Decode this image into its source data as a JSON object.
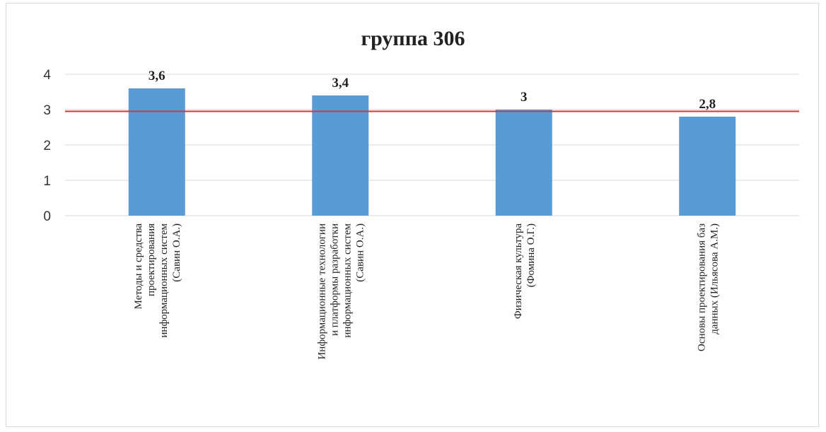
{
  "chart_data": {
    "type": "bar",
    "title": "группа 306",
    "xlabel": "",
    "ylabel": "",
    "ylim": [
      0,
      4
    ],
    "yticks": [
      "0",
      "1",
      "2",
      "3",
      "4"
    ],
    "grid": true,
    "categories": [
      [
        "Методы и средства",
        "проектирования",
        "информационных систем",
        "(Савин О.А.)"
      ],
      [
        "Информационные технологии",
        "и платформы разработки",
        "информационных систем",
        "(Савин О.А.)"
      ],
      [
        "Физическая культура",
        "(Фомина О.Г.)"
      ],
      [
        "Основы проектирования баз",
        "данных (Ильясова А.М.)"
      ]
    ],
    "values": [
      3.6,
      3.4,
      3.0,
      2.8
    ],
    "data_labels": [
      "3,6",
      "3,4",
      "3",
      "2,8"
    ],
    "reference_line": 2.95,
    "colors": {
      "bar": "#5b9bd5",
      "reference_line": "#d9343a",
      "grid": "#d9d9d9"
    }
  }
}
